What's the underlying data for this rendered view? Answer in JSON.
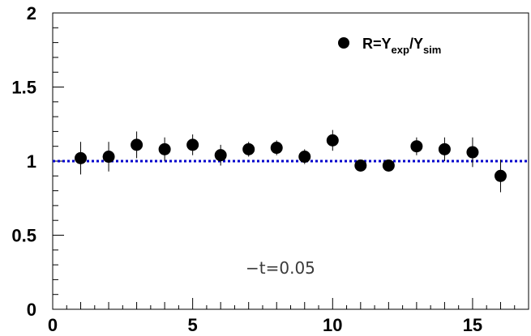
{
  "chart_data": {
    "type": "scatter",
    "title": "",
    "xlabel": "",
    "ylabel": "",
    "xlim": [
      0,
      17
    ],
    "ylim": [
      0,
      2
    ],
    "x_tick_labels": [
      "0",
      "5",
      "10",
      "15"
    ],
    "y_tick_labels": [
      "0",
      "0.5",
      "1",
      "1.5",
      "2"
    ],
    "grid": false,
    "legend_position": "top-right",
    "legend": {
      "main": "R=Y",
      "sub1": "exp",
      "slash": "/Y",
      "sub2": "sim"
    },
    "annotation": "−t=0.05",
    "reference_line": {
      "y": 1.0,
      "style": "dotted",
      "color": "#0000cc"
    },
    "marker_color": "#000000",
    "series": [
      {
        "name": "R=Yexp/Ysim",
        "points": [
          {
            "x": 1,
            "y": 1.02,
            "err": 0.11
          },
          {
            "x": 2,
            "y": 1.03,
            "err": 0.1
          },
          {
            "x": 3,
            "y": 1.11,
            "err": 0.09
          },
          {
            "x": 4,
            "y": 1.08,
            "err": 0.08
          },
          {
            "x": 5,
            "y": 1.11,
            "err": 0.07
          },
          {
            "x": 6,
            "y": 1.04,
            "err": 0.07
          },
          {
            "x": 7,
            "y": 1.08,
            "err": 0.05
          },
          {
            "x": 8,
            "y": 1.09,
            "err": 0.05
          },
          {
            "x": 9,
            "y": 1.03,
            "err": 0.05
          },
          {
            "x": 10,
            "y": 1.14,
            "err": 0.07
          },
          {
            "x": 11,
            "y": 0.97,
            "err": 0.03
          },
          {
            "x": 12,
            "y": 0.97,
            "err": 0.03
          },
          {
            "x": 13,
            "y": 1.1,
            "err": 0.06
          },
          {
            "x": 14,
            "y": 1.08,
            "err": 0.08
          },
          {
            "x": 15,
            "y": 1.06,
            "err": 0.1
          },
          {
            "x": 16,
            "y": 0.9,
            "err": 0.11
          }
        ]
      }
    ]
  }
}
